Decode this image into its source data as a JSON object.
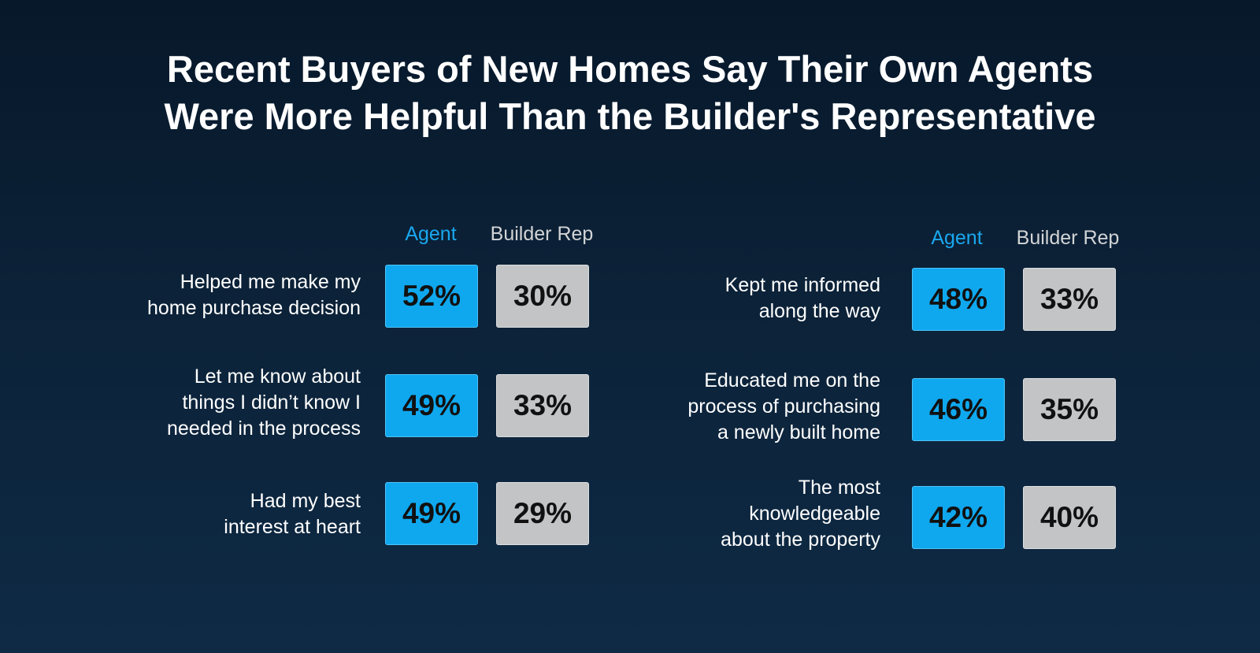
{
  "title_lines": [
    "Recent Buyers of New Homes Say Their Own Agents",
    "Were More Helpful Than the Builder's Representative"
  ],
  "colors": {
    "agent": "#0fa8ef",
    "builder_rep": "#c2c4c6",
    "background": "#0c2238"
  },
  "chart_data": [
    {
      "type": "table",
      "columns": [
        "Agent",
        "Builder Rep"
      ],
      "rows": [
        {
          "label_lines": [
            "Helped me make my",
            "home purchase decision"
          ],
          "agent": "52%",
          "builder": "30%"
        },
        {
          "label_lines": [
            "Let me know about",
            "things I didn’t know I",
            "needed in the process"
          ],
          "agent": "49%",
          "builder": "33%"
        },
        {
          "label_lines": [
            "Had my best",
            "interest at heart"
          ],
          "agent": "49%",
          "builder": "29%"
        }
      ]
    },
    {
      "type": "table",
      "columns": [
        "Agent",
        "Builder Rep"
      ],
      "rows": [
        {
          "label_lines": [
            "Kept me informed",
            "along the way"
          ],
          "agent": "48%",
          "builder": "33%"
        },
        {
          "label_lines": [
            "Educated me on the",
            "process of purchasing",
            "a newly built home"
          ],
          "agent": "46%",
          "builder": "35%"
        },
        {
          "label_lines": [
            "The most",
            "knowledgeable",
            "about the property"
          ],
          "agent": "42%",
          "builder": "40%"
        }
      ]
    }
  ]
}
